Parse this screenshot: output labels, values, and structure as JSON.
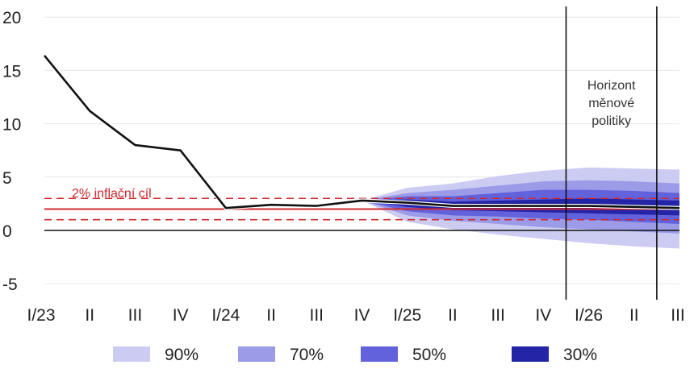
{
  "chart_data": {
    "type": "line",
    "title": "",
    "xlabel": "",
    "ylabel": "",
    "x_ticks": [
      "I/23",
      "II",
      "III",
      "IV",
      "I/24",
      "II",
      "III",
      "IV",
      "I/25",
      "II",
      "III",
      "IV",
      "I/26",
      "II",
      "III"
    ],
    "ylim": [
      -6.5,
      21
    ],
    "y_ticks": [
      -5,
      0,
      5,
      10,
      15,
      20
    ],
    "grid": true,
    "series": [
      {
        "type": "line",
        "color": "#111111",
        "points": [
          [
            0,
            16.4
          ],
          [
            1,
            11.2
          ],
          [
            2,
            8.0
          ],
          [
            3,
            7.5
          ],
          [
            4,
            2.1
          ],
          [
            5,
            2.4
          ],
          [
            6,
            2.3
          ],
          [
            7,
            2.8
          ],
          [
            8,
            2.6
          ],
          [
            9,
            2.3
          ],
          [
            10,
            2.3
          ],
          [
            11,
            2.3
          ],
          [
            12,
            2.3
          ],
          [
            13,
            2.2
          ],
          [
            14,
            2.1
          ]
        ]
      }
    ],
    "fan": {
      "x": [
        7,
        8,
        9,
        10,
        11,
        12,
        13,
        14
      ],
      "center": [
        2.8,
        2.6,
        2.3,
        2.3,
        2.3,
        2.3,
        2.2,
        2.1
      ],
      "bands": [
        {
          "label": "90%",
          "color": "#ccccf3",
          "lower": [
            2.8,
            0.8,
            0.1,
            -0.4,
            -0.8,
            -1.2,
            -1.5,
            -1.7
          ],
          "upper": [
            2.8,
            4.0,
            4.4,
            5.1,
            5.6,
            5.9,
            5.8,
            5.7
          ]
        },
        {
          "label": "70%",
          "color": "#9b9be8",
          "lower": [
            2.8,
            1.4,
            0.9,
            0.6,
            0.3,
            0.1,
            -0.1,
            -0.3
          ],
          "upper": [
            2.8,
            3.5,
            3.8,
            4.2,
            4.6,
            4.7,
            4.6,
            4.4
          ]
        },
        {
          "label": "50%",
          "color": "#6262dd",
          "lower": [
            2.8,
            1.8,
            1.4,
            1.3,
            1.1,
            1.0,
            0.8,
            0.6
          ],
          "upper": [
            2.8,
            3.2,
            3.2,
            3.5,
            3.8,
            3.8,
            3.7,
            3.5
          ]
        },
        {
          "label": "30%",
          "color": "#2424a6",
          "lower": [
            2.8,
            2.2,
            1.9,
            1.8,
            1.7,
            1.6,
            1.5,
            1.4
          ],
          "upper": [
            2.8,
            2.9,
            2.7,
            2.8,
            2.9,
            3.0,
            2.9,
            2.8
          ]
        }
      ]
    },
    "reference_lines": {
      "zero": {
        "y": 0,
        "color": "#111111"
      },
      "target": {
        "y": 2,
        "color": "#d0282e",
        "label": "2% inflační cíl"
      },
      "tolerance": {
        "y": [
          1,
          3
        ],
        "color": "#d0282e",
        "style": "dashed"
      }
    },
    "vertical_lines": [
      11.5,
      13.5
    ],
    "annotation": {
      "lines": [
        "Horizont",
        "měnové",
        "politiky"
      ]
    },
    "legend": {
      "placement": "bottom",
      "items": [
        "90%",
        "70%",
        "50%",
        "30%"
      ]
    }
  }
}
